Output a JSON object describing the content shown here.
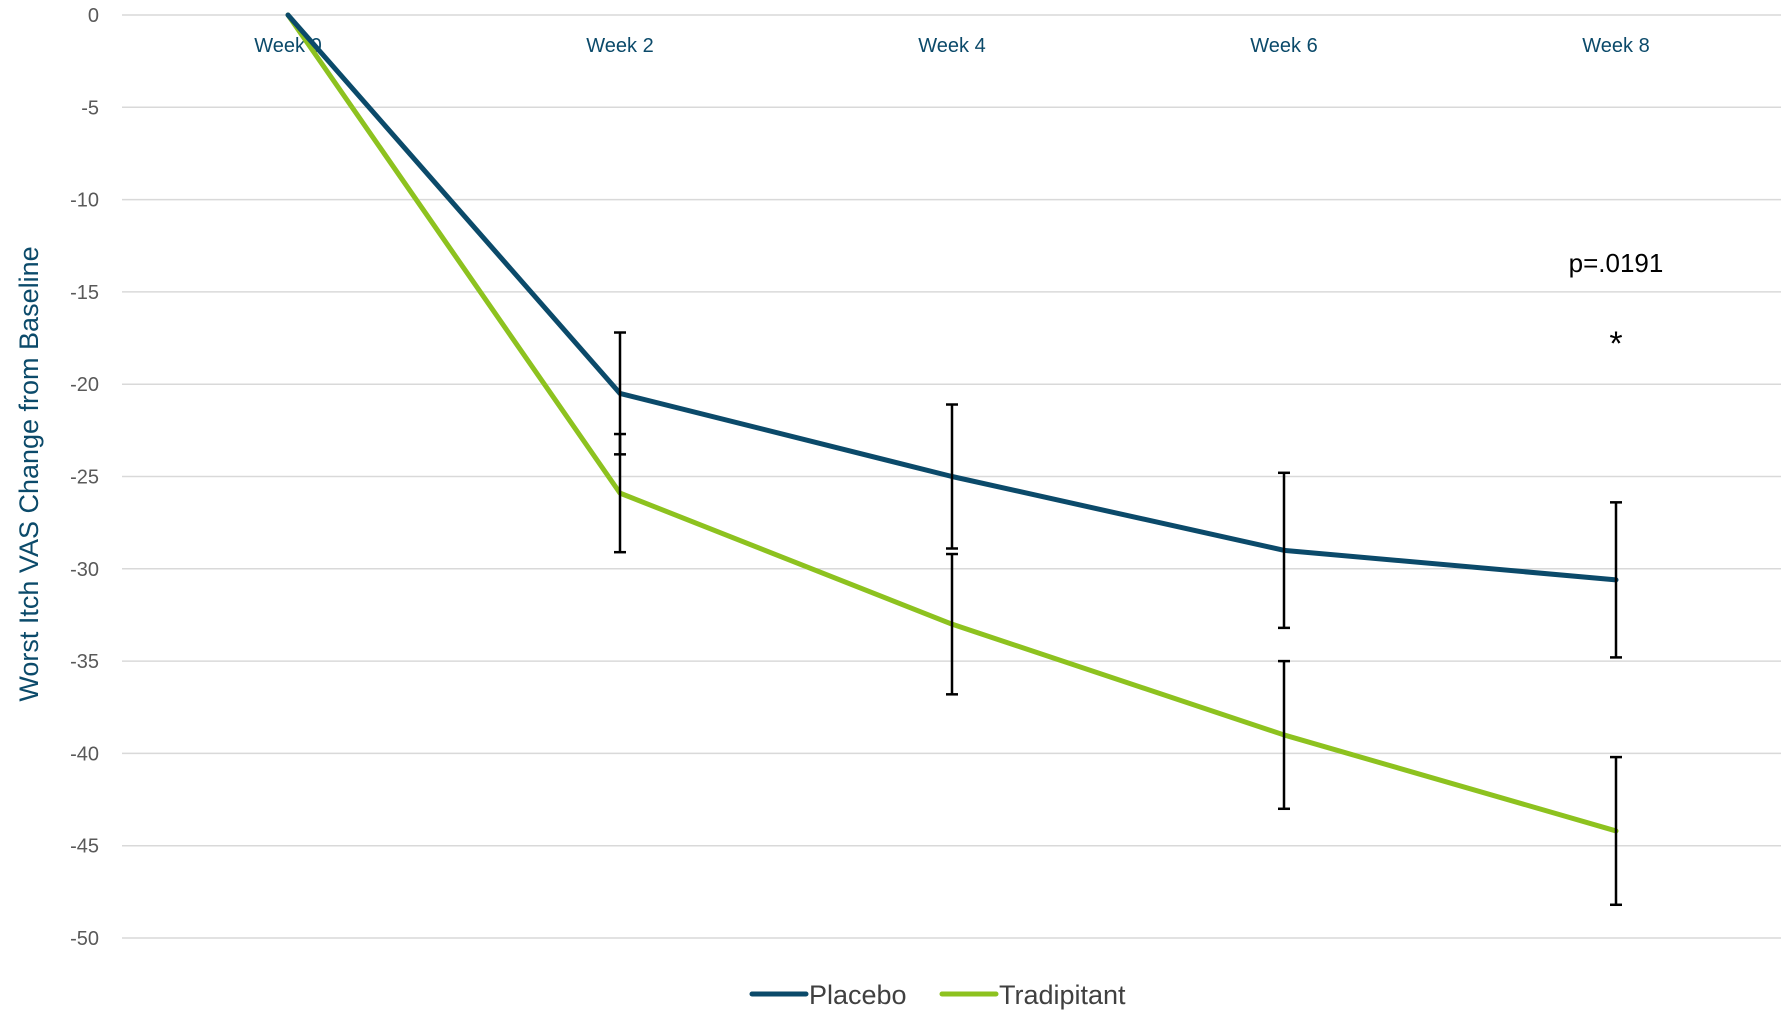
{
  "chart_data": {
    "type": "line",
    "categories": [
      "Week 0",
      "Week 2",
      "Week 4",
      "Week 6",
      "Week 8"
    ],
    "ylabel": "Worst Itch VAS Change from Baseline",
    "ylim": [
      -50,
      0
    ],
    "yticks": [
      0,
      -5,
      -10,
      -15,
      -20,
      -25,
      -30,
      -35,
      -40,
      -45,
      -50
    ],
    "grid": true,
    "legend_position": "bottom",
    "series": [
      {
        "name": "Placebo",
        "color": "#0b4a6a",
        "values": [
          0,
          -20.5,
          -25.0,
          -29.0,
          -30.6
        ],
        "error_bars": [
          null,
          3.3,
          3.9,
          4.2,
          4.2
        ]
      },
      {
        "name": "Tradipitant",
        "color": "#8dc21f",
        "values": [
          0,
          -25.9,
          -33.0,
          -39.0,
          -44.2
        ],
        "error_bars": [
          null,
          3.2,
          3.8,
          4.0,
          4.0
        ]
      }
    ],
    "annotations": [
      {
        "category": "Week 8",
        "text": "p=.0191"
      },
      {
        "category": "Week 8",
        "text": "*"
      }
    ]
  }
}
